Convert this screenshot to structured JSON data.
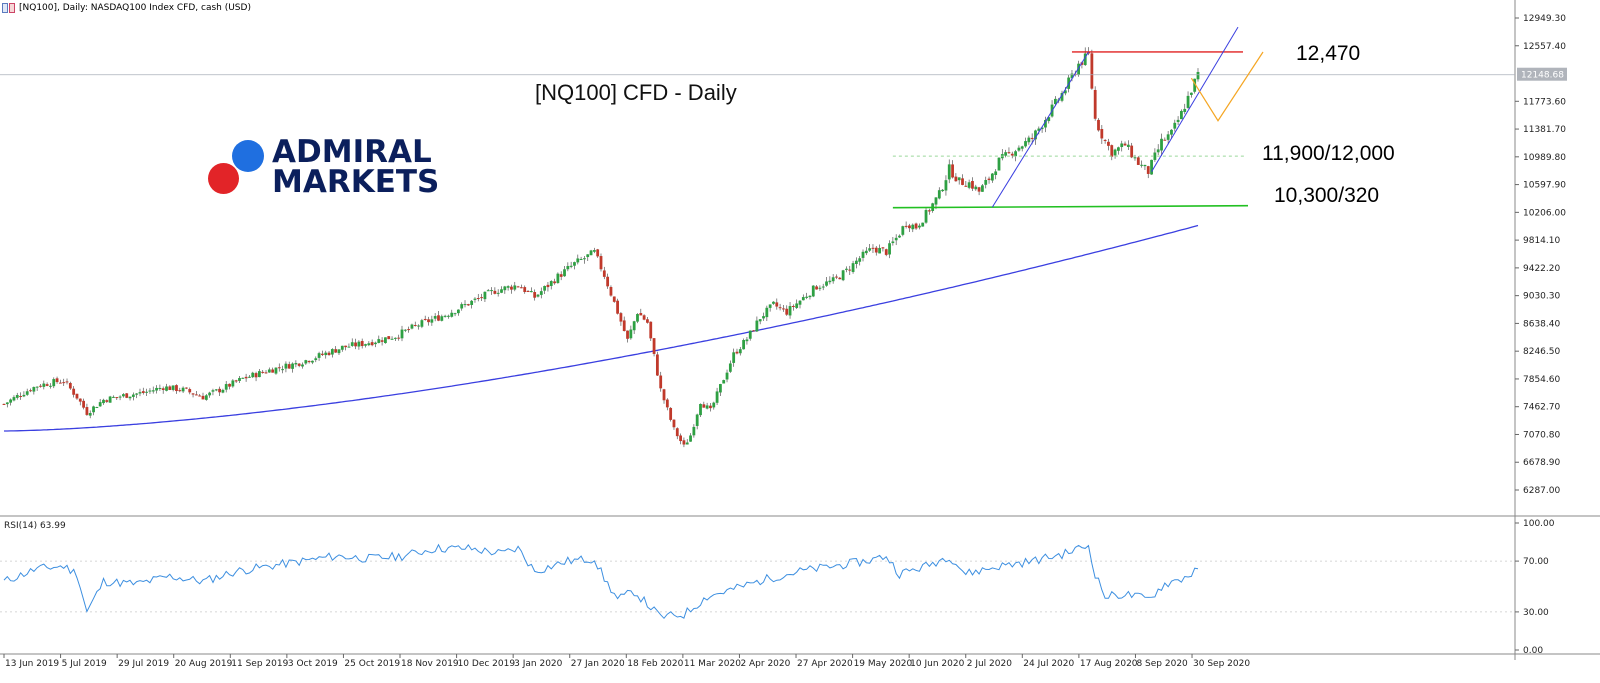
{
  "header": {
    "text": "[NQ100], Daily:  NASDAQ100 Index CFD, cash (USD)"
  },
  "annotations": {
    "title": "[NQ100] CFD - Daily",
    "level_top": "12,470",
    "level_mid": "11,900/12,000",
    "level_low": "10,300/320"
  },
  "logo": {
    "line1": "ADMIRAL",
    "line2": "MARKETS"
  },
  "colors": {
    "bull_candle": "#2ea043",
    "bear_candle": "#c0392b",
    "ma": "#3a3fe0",
    "rsi": "#3d8fe0",
    "resistance": "#e02020",
    "support": "#22c022",
    "projection": "#f5a623",
    "channel": "#3a3fe0"
  },
  "chart_data": [
    {
      "type": "candlestick",
      "title": "",
      "price_axis": {
        "min": 6287.7,
        "max": 12949.3,
        "ticks": [
          "12949.30",
          "12557.40",
          "11773.60",
          "11381.70",
          "10989.80",
          "10597.90",
          "10206.00",
          "9814.10",
          "9422.20",
          "9030.30",
          "8638.40",
          "8246.50",
          "7854.60",
          "7462.70",
          "7070.80",
          "6678.90",
          "6287.00"
        ],
        "current_price": "12148.68"
      },
      "date_axis": [
        "13 Jun 2019",
        "5 Jul 2019",
        "29 Jul 2019",
        "20 Aug 2019",
        "11 Sep 2019",
        "3 Oct 2019",
        "25 Oct 2019",
        "18 Nov 2019",
        "10 Dec 2019",
        "3 Jan 2020",
        "27 Jan 2020",
        "18 Feb 2020",
        "11 Mar 2020",
        "2 Apr 2020",
        "27 Apr 2020",
        "19 May 2020",
        "10 Jun 2020",
        "2 Jul 2020",
        "24 Jul 2020",
        "17 Aug 2020",
        "8 Sep 2020",
        "30 Sep 2020"
      ],
      "price_path": [
        [
          0,
          7500
        ],
        [
          5,
          7640
        ],
        [
          10,
          7760
        ],
        [
          15,
          7810
        ],
        [
          18,
          7830
        ],
        [
          22,
          7600
        ],
        [
          25,
          7380
        ],
        [
          30,
          7560
        ],
        [
          36,
          7620
        ],
        [
          42,
          7660
        ],
        [
          48,
          7740
        ],
        [
          54,
          7700
        ],
        [
          60,
          7600
        ],
        [
          66,
          7720
        ],
        [
          72,
          7860
        ],
        [
          80,
          7980
        ],
        [
          88,
          8070
        ],
        [
          95,
          8180
        ],
        [
          102,
          8300
        ],
        [
          110,
          8370
        ],
        [
          118,
          8460
        ],
        [
          125,
          8620
        ],
        [
          133,
          8760
        ],
        [
          140,
          8920
        ],
        [
          148,
          9100
        ],
        [
          155,
          9180
        ],
        [
          160,
          9010
        ],
        [
          167,
          9300
        ],
        [
          172,
          9480
        ],
        [
          175,
          9560
        ],
        [
          178,
          9640
        ],
        [
          181,
          9320
        ],
        [
          185,
          8800
        ],
        [
          188,
          8400
        ],
        [
          191,
          8800
        ],
        [
          194,
          8650
        ],
        [
          198,
          7700
        ],
        [
          202,
          7140
        ],
        [
          205,
          6900
        ],
        [
          207,
          7060
        ],
        [
          210,
          7540
        ],
        [
          213,
          7400
        ],
        [
          216,
          7750
        ],
        [
          220,
          8200
        ],
        [
          224,
          8420
        ],
        [
          228,
          8720
        ],
        [
          232,
          8900
        ],
        [
          236,
          8800
        ],
        [
          240,
          8960
        ],
        [
          245,
          9160
        ],
        [
          250,
          9240
        ],
        [
          254,
          9380
        ],
        [
          258,
          9560
        ],
        [
          262,
          9700
        ],
        [
          266,
          9650
        ],
        [
          269,
          9840
        ],
        [
          272,
          10060
        ],
        [
          275,
          10000
        ],
        [
          278,
          10180
        ],
        [
          282,
          10460
        ],
        [
          285,
          10820
        ],
        [
          288,
          10640
        ],
        [
          291,
          10620
        ],
        [
          294,
          10500
        ],
        [
          297,
          10680
        ],
        [
          300,
          10930
        ],
        [
          305,
          11100
        ],
        [
          310,
          11250
        ],
        [
          315,
          11600
        ],
        [
          320,
          11950
        ],
        [
          324,
          12300
        ],
        [
          327,
          12420
        ],
        [
          329,
          11520
        ],
        [
          331,
          11300
        ],
        [
          334,
          11050
        ],
        [
          338,
          11160
        ],
        [
          342,
          10900
        ],
        [
          345,
          10780
        ],
        [
          349,
          11200
        ],
        [
          352,
          11320
        ],
        [
          355,
          11600
        ],
        [
          358,
          11940
        ],
        [
          360,
          12150
        ]
      ],
      "bars_total": 361,
      "moving_average": {
        "start": 7120,
        "end": 10020
      },
      "horizontal_lines": [
        {
          "name": "resistance",
          "price": 12470
        },
        {
          "name": "support",
          "price": 10300
        },
        {
          "name": "dotted",
          "price": 11000
        }
      ]
    },
    {
      "type": "line",
      "title": "RSI(14) 63.99",
      "ylim": [
        0,
        100
      ],
      "ticks": [
        "100.00",
        "70.00",
        "30.00",
        "0.00"
      ],
      "levels": [
        70,
        30
      ],
      "values": [
        [
          0,
          54
        ],
        [
          10,
          64
        ],
        [
          18,
          66
        ],
        [
          22,
          60
        ],
        [
          25,
          30
        ],
        [
          30,
          54
        ],
        [
          40,
          52
        ],
        [
          50,
          58
        ],
        [
          60,
          54
        ],
        [
          70,
          62
        ],
        [
          80,
          66
        ],
        [
          90,
          70
        ],
        [
          100,
          74
        ],
        [
          110,
          72
        ],
        [
          120,
          74
        ],
        [
          130,
          80
        ],
        [
          140,
          80
        ],
        [
          150,
          76
        ],
        [
          155,
          80
        ],
        [
          160,
          62
        ],
        [
          170,
          70
        ],
        [
          178,
          72
        ],
        [
          181,
          56
        ],
        [
          185,
          40
        ],
        [
          190,
          46
        ],
        [
          198,
          26
        ],
        [
          205,
          28
        ],
        [
          212,
          42
        ],
        [
          220,
          48
        ],
        [
          230,
          56
        ],
        [
          240,
          62
        ],
        [
          250,
          66
        ],
        [
          260,
          70
        ],
        [
          266,
          74
        ],
        [
          270,
          60
        ],
        [
          278,
          66
        ],
        [
          285,
          74
        ],
        [
          290,
          60
        ],
        [
          300,
          66
        ],
        [
          310,
          70
        ],
        [
          320,
          76
        ],
        [
          324,
          80
        ],
        [
          327,
          82
        ],
        [
          329,
          60
        ],
        [
          332,
          42
        ],
        [
          338,
          44
        ],
        [
          345,
          40
        ],
        [
          350,
          52
        ],
        [
          355,
          56
        ],
        [
          358,
          60
        ],
        [
          360,
          63.99
        ]
      ]
    }
  ]
}
